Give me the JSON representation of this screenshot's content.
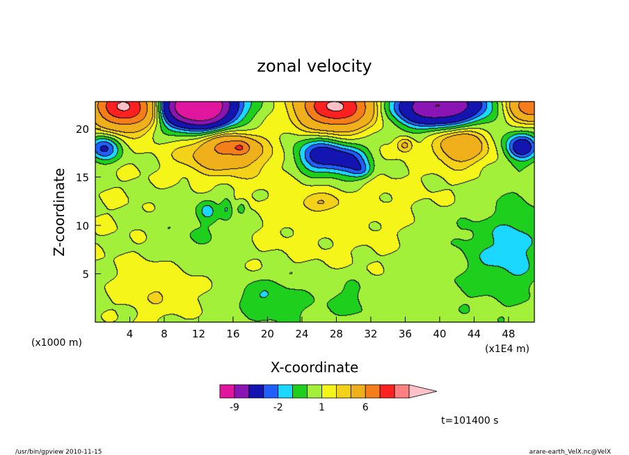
{
  "chart_data": {
    "type": "heatmap",
    "title": "zonal velocity",
    "xlabel": "X-coordinate",
    "ylabel": "Z-coordinate",
    "x_unit_label": "(x1E4 m)",
    "y_unit_label": "(x1000 m)",
    "xlim": [
      0,
      51
    ],
    "ylim": [
      0,
      22.8
    ],
    "x_ticks": [
      4,
      8,
      12,
      16,
      20,
      24,
      28,
      32,
      36,
      40,
      44,
      48
    ],
    "y_ticks": [
      5,
      10,
      15,
      20
    ],
    "colorbar": {
      "levels": [
        -12,
        -9,
        -6,
        -3,
        -2,
        -1,
        0,
        1,
        2,
        3,
        6,
        9,
        12
      ],
      "colors": [
        "#e0169e",
        "#8a14b4",
        "#1414b0",
        "#1f5fff",
        "#1ad8ff",
        "#1ecf1e",
        "#a3f03a",
        "#f5f51a",
        "#f5d21a",
        "#f0b01c",
        "#f57e1a",
        "#ff2020",
        "#ff8080",
        "#ffc0c8"
      ],
      "tick_labels": [
        {
          "value": -9,
          "label": "-9"
        },
        {
          "value": -2,
          "label": "-2"
        },
        {
          "value": 1,
          "label": "1"
        },
        {
          "value": 6,
          "label": "6"
        }
      ]
    },
    "time_label": "t=101400 s",
    "blobs": [
      {
        "x": 25,
        "y": 11.4,
        "sx": 30,
        "sy": 7,
        "v": 0.8
      },
      {
        "x": 7,
        "y": 3.2,
        "sx": 4.5,
        "sy": 3.2,
        "v": 1.2
      },
      {
        "x": 21.5,
        "y": 1.8,
        "sx": 5,
        "sy": 2.5,
        "v": -1.0
      },
      {
        "x": 30,
        "y": 2.4,
        "sx": 3,
        "sy": 2.3,
        "v": -1.0
      },
      {
        "x": 45,
        "y": 7,
        "sx": 7,
        "sy": 5,
        "v": -1.6
      },
      {
        "x": 41,
        "y": 6.5,
        "sx": 2.2,
        "sy": 1.6,
        "v": 1.1
      },
      {
        "x": 12,
        "y": 10,
        "sx": 6,
        "sy": 4,
        "v": -1.2
      },
      {
        "x": 13,
        "y": 11.5,
        "sx": 1.0,
        "sy": 1.0,
        "v": -1.6
      },
      {
        "x": 15.3,
        "y": 11.8,
        "sx": 0.7,
        "sy": 1.2,
        "v": -1.6
      },
      {
        "x": 17,
        "y": 11.8,
        "sx": 0.6,
        "sy": 0.7,
        "v": -1.5
      },
      {
        "x": 15,
        "y": 17.6,
        "sx": 5,
        "sy": 2.3,
        "v": 3.8
      },
      {
        "x": 15.5,
        "y": 18.1,
        "sx": 2.2,
        "sy": 0.9,
        "v": 3.2
      },
      {
        "x": 17,
        "y": 18,
        "sx": 1.0,
        "sy": 0.7,
        "v": 3.5
      },
      {
        "x": 26,
        "y": 17.2,
        "sx": 2.8,
        "sy": 1.8,
        "v": -4.6
      },
      {
        "x": 29.5,
        "y": 16.6,
        "sx": 2.4,
        "sy": 1.7,
        "v": -3.8
      },
      {
        "x": 31,
        "y": 15.6,
        "sx": 1.2,
        "sy": 0.8,
        "v": -1.8
      },
      {
        "x": 36,
        "y": 18.3,
        "sx": 1.0,
        "sy": 0.8,
        "v": 2.8
      },
      {
        "x": 42.5,
        "y": 18.3,
        "sx": 3,
        "sy": 2,
        "v": 4.4
      },
      {
        "x": 26,
        "y": 12.3,
        "sx": 2.5,
        "sy": 0.9,
        "v": 1.5
      },
      {
        "x": 19,
        "y": 2.8,
        "sx": 3,
        "sy": 1.5,
        "v": -1.0
      },
      {
        "x": 49,
        "y": 9,
        "sx": 3,
        "sy": 6,
        "v": -1.2
      },
      {
        "x": 1,
        "y": 18,
        "sx": 1.8,
        "sy": 1.4,
        "v": -4
      },
      {
        "x": 49.5,
        "y": 18.1,
        "sx": 1.8,
        "sy": 1.4,
        "v": -5
      }
    ],
    "layers": [
      {
        "xc": 3.5,
        "w": 3.5,
        "amp": 12,
        "thick": 2.2
      },
      {
        "xc": 12,
        "w": 4,
        "amp": -16,
        "thick": 2.2
      },
      {
        "xc": 28,
        "w": 4,
        "amp": 12,
        "thick": 2.2
      },
      {
        "xc": 40,
        "w": 5,
        "amp": -10,
        "thick": 2.0
      },
      {
        "xc": 51,
        "w": 3,
        "amp": 8,
        "thick": 1.5
      }
    ]
  },
  "footer": {
    "left": "/usr/bin/gpview   2010-11-15",
    "right": "arare-earth_VelX.nc@VelX"
  }
}
